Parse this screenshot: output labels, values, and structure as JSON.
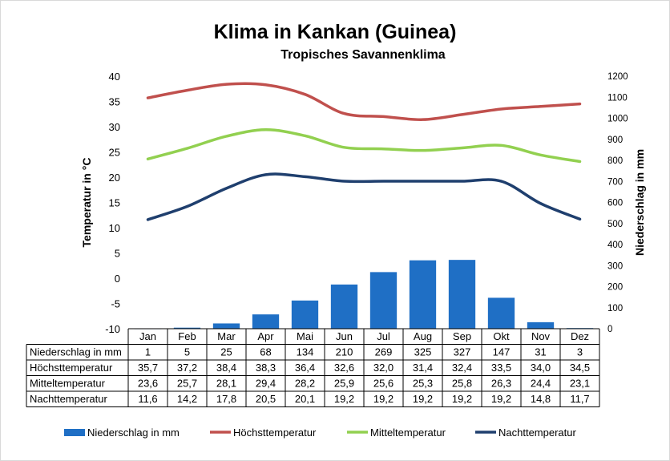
{
  "chart_data": {
    "type": "bar",
    "title": "Klima in Kankan (Guinea)",
    "subtitle": "Tropisches Savannenklima",
    "categories": [
      "Jan",
      "Feb",
      "Mar",
      "Apr",
      "Mai",
      "Jun",
      "Jul",
      "Aug",
      "Sep",
      "Okt",
      "Nov",
      "Dez"
    ],
    "ylabel": "Temperatur in °C",
    "y2label": "Niederschlag in mm",
    "ylim": [
      -10,
      40
    ],
    "y2lim": [
      0,
      1200
    ],
    "yticks": [
      "-10",
      "-5",
      "0",
      "5",
      "10",
      "15",
      "20",
      "25",
      "30",
      "35",
      "40"
    ],
    "y2ticks": [
      "0",
      "100",
      "200",
      "300",
      "400",
      "500",
      "600",
      "700",
      "800",
      "900",
      "1000",
      "1100",
      "1200"
    ],
    "legend_position": "bottom",
    "series": [
      {
        "name": "Niederschlag in mm",
        "type": "bar",
        "axis": "right",
        "color": "#1f6fc5",
        "values": [
          1,
          5,
          25,
          68,
          134,
          210,
          269,
          325,
          327,
          147,
          31,
          3
        ],
        "labels": [
          "1",
          "5",
          "25",
          "68",
          "134",
          "210",
          "269",
          "325",
          "327",
          "147",
          "31",
          "3"
        ]
      },
      {
        "name": "Höchsttemperatur",
        "type": "line",
        "axis": "left",
        "color": "#c0504d",
        "values": [
          35.7,
          37.2,
          38.4,
          38.3,
          36.4,
          32.6,
          32.0,
          31.4,
          32.4,
          33.5,
          34.0,
          34.5
        ],
        "labels": [
          "35,7",
          "37,2",
          "38,4",
          "38,3",
          "36,4",
          "32,6",
          "32,0",
          "31,4",
          "32,4",
          "33,5",
          "34,0",
          "34,5"
        ]
      },
      {
        "name": "Mitteltemperatur",
        "type": "line",
        "axis": "left",
        "color": "#92d050",
        "values": [
          23.6,
          25.7,
          28.1,
          29.4,
          28.2,
          25.9,
          25.6,
          25.3,
          25.8,
          26.3,
          24.4,
          23.1
        ],
        "labels": [
          "23,6",
          "25,7",
          "28,1",
          "29,4",
          "28,2",
          "25,9",
          "25,6",
          "25,3",
          "25,8",
          "26,3",
          "24,4",
          "23,1"
        ]
      },
      {
        "name": "Nachttemperatur",
        "type": "line",
        "axis": "left",
        "color": "#1f3f6e",
        "values": [
          11.6,
          14.2,
          17.8,
          20.5,
          20.1,
          19.2,
          19.2,
          19.2,
          19.2,
          19.2,
          14.8,
          11.7
        ],
        "labels": [
          "11,6",
          "14,2",
          "17,8",
          "20,5",
          "20,1",
          "19,2",
          "19,2",
          "19,2",
          "19,2",
          "19,2",
          "14,8",
          "11,7"
        ]
      }
    ]
  }
}
